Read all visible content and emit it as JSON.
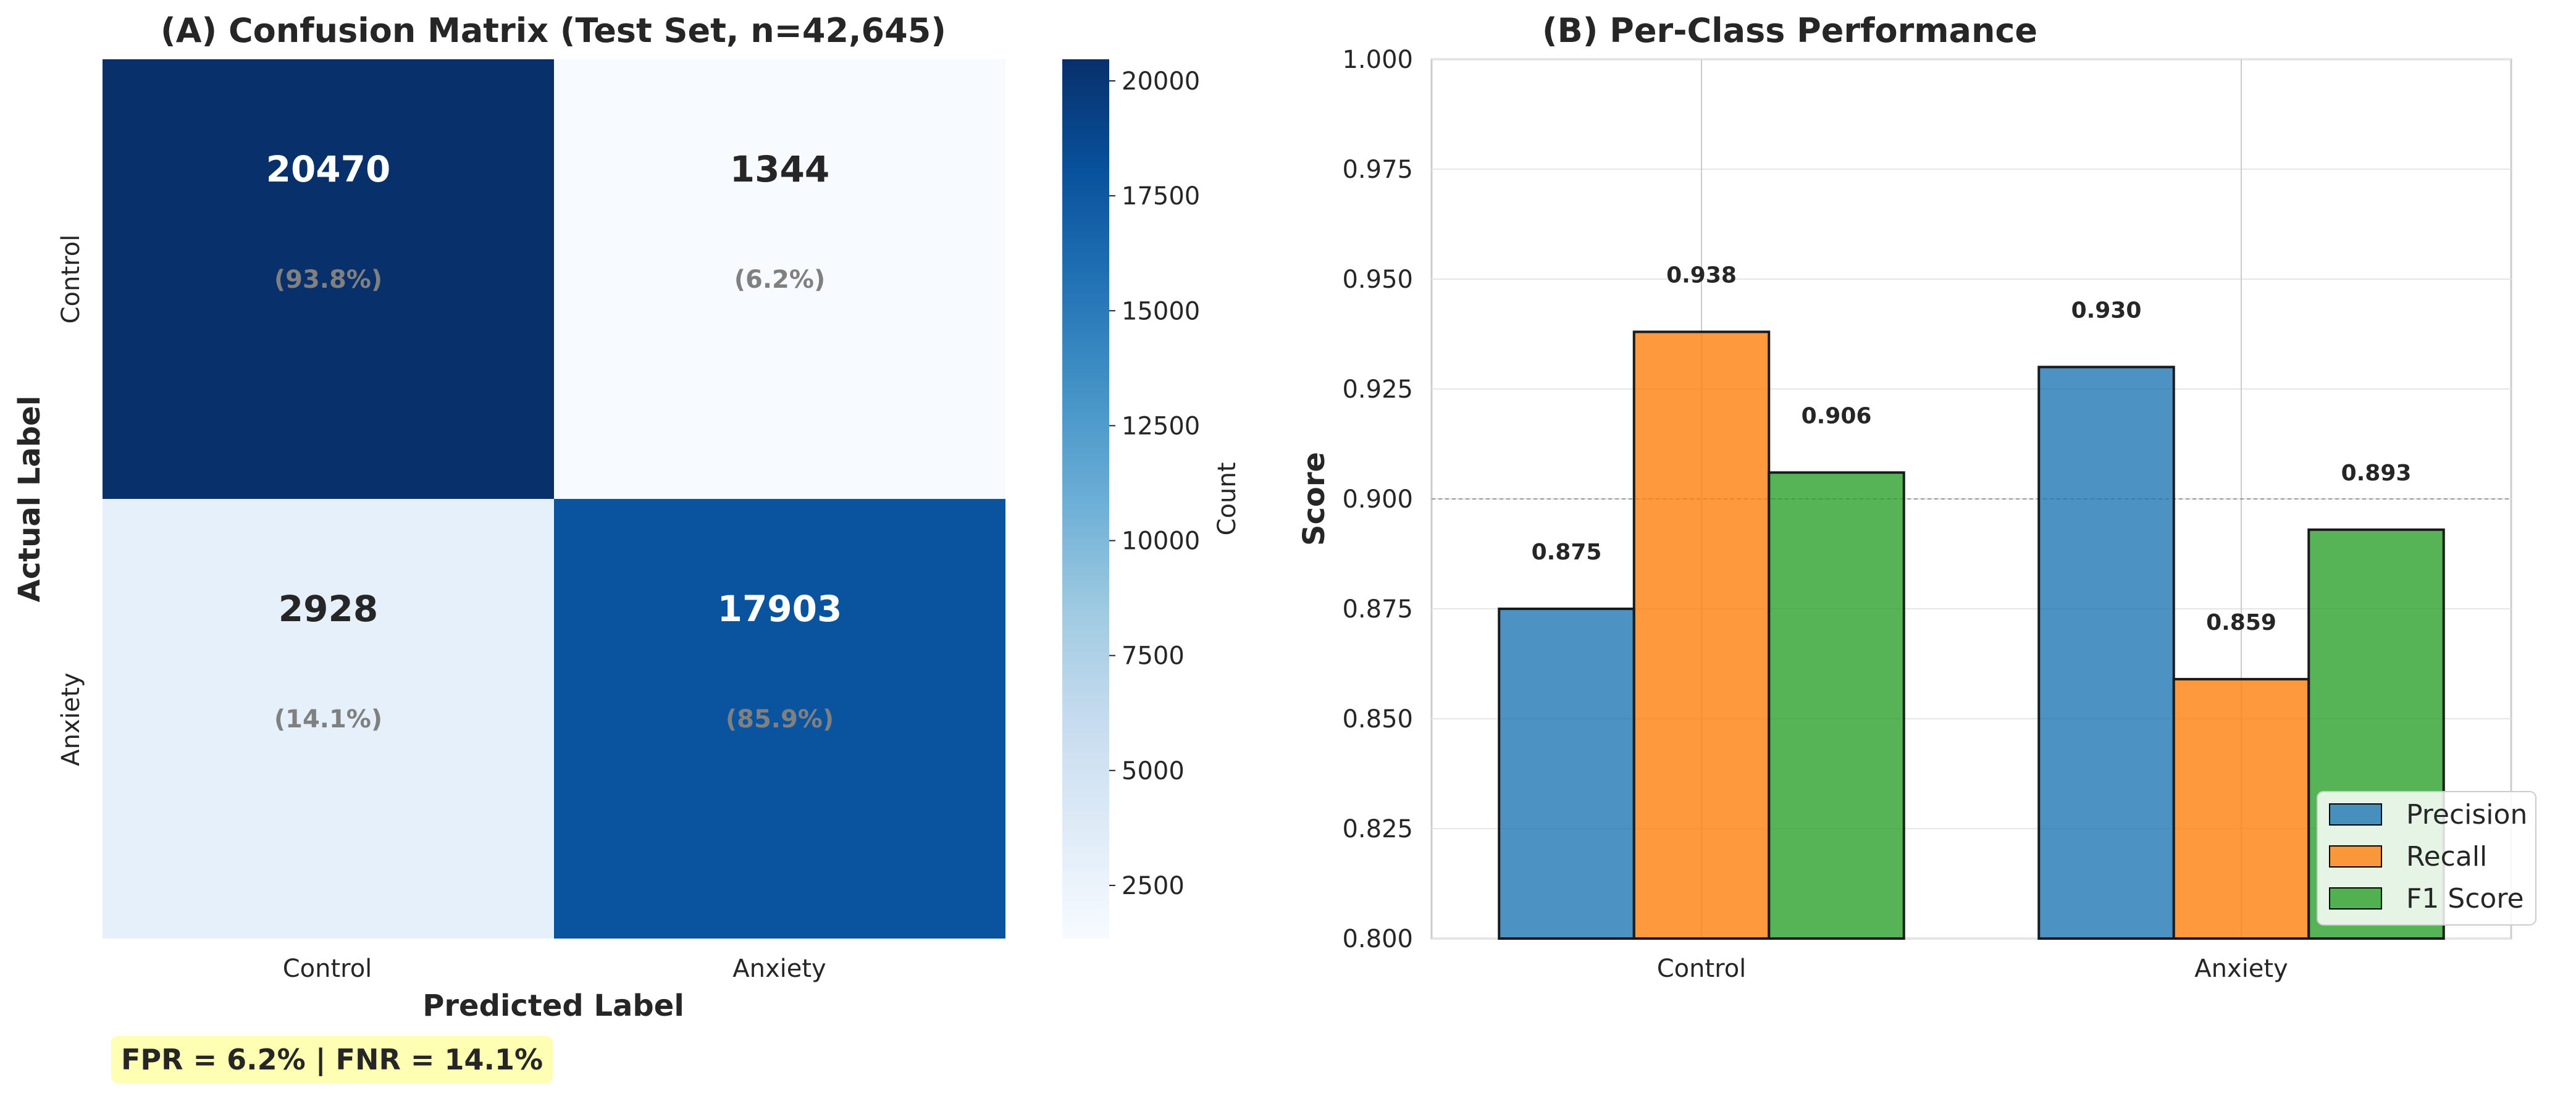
{
  "chart_data": [
    {
      "type": "heatmap",
      "title": "(A) Confusion Matrix (Test Set, n=42,645)",
      "xlabel": "Predicted Label",
      "ylabel": "Actual Label",
      "row_labels": [
        "Control",
        "Anxiety"
      ],
      "col_labels": [
        "Control",
        "Anxiety"
      ],
      "values": [
        [
          20470,
          1344
        ],
        [
          2928,
          17903
        ]
      ],
      "percent_labels": [
        [
          "(93.8%)",
          "(6.2%)"
        ],
        [
          "(14.1%)",
          "(85.9%)"
        ]
      ],
      "colorbar": {
        "label": "Count",
        "range": [
          1344,
          20470
        ],
        "ticks": [
          2500,
          5000,
          7500,
          10000,
          12500,
          15000,
          17500,
          20000
        ],
        "colormap": "Blues"
      }
    },
    {
      "type": "bar",
      "title": "(B) Per-Class Performance",
      "xlabel": "",
      "ylabel": "Score",
      "categories": [
        "Control",
        "Anxiety"
      ],
      "ylim": [
        0.8,
        1.0
      ],
      "yticks": [
        0.8,
        0.825,
        0.85,
        0.875,
        0.9,
        0.925,
        0.95,
        0.975,
        1.0
      ],
      "reference_line": 0.9,
      "grid": true,
      "legend_position": "bottom-right",
      "series": [
        {
          "name": "Precision",
          "values": [
            0.875,
            0.93
          ],
          "color": "#1f77b4"
        },
        {
          "name": "Recall",
          "values": [
            0.938,
            0.859
          ],
          "color": "#ff7f0e"
        },
        {
          "name": "F1 Score",
          "values": [
            0.906,
            0.893
          ],
          "color": "#2ca02c"
        }
      ]
    }
  ],
  "footnote": "FPR = 6.2%  |  FNR = 14.1%"
}
